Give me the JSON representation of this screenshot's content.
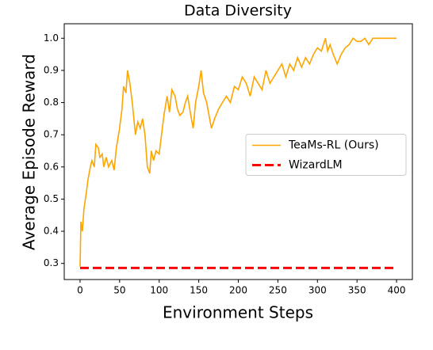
{
  "chart_data": {
    "type": "line",
    "title": "Data Diversity",
    "xlabel": "Environment Steps",
    "ylabel": "Average Episode Reward",
    "series": [
      {
        "name": "TeaMs-RL (Ours)",
        "color": "#ffa500",
        "x": [
          0,
          1,
          3,
          5,
          8,
          10,
          13,
          15,
          18,
          20,
          23,
          25,
          28,
          30,
          33,
          36,
          40,
          43,
          46,
          50,
          53,
          55,
          58,
          60,
          63,
          66,
          70,
          73,
          76,
          79,
          82,
          85,
          88,
          90,
          93,
          96,
          100,
          103,
          106,
          110,
          113,
          116,
          120,
          123,
          126,
          130,
          133,
          136,
          140,
          143,
          146,
          150,
          153,
          156,
          160,
          163,
          166,
          170,
          175,
          180,
          185,
          190,
          195,
          200,
          205,
          210,
          215,
          220,
          225,
          230,
          235,
          240,
          245,
          250,
          255,
          260,
          265,
          270,
          275,
          280,
          285,
          290,
          295,
          300,
          305,
          310,
          313,
          316,
          320,
          325,
          330,
          335,
          340,
          345,
          350,
          355,
          360,
          365,
          370,
          380,
          390,
          400
        ],
        "values": [
          0.29,
          0.43,
          0.4,
          0.47,
          0.52,
          0.56,
          0.6,
          0.62,
          0.6,
          0.67,
          0.66,
          0.63,
          0.64,
          0.6,
          0.63,
          0.6,
          0.62,
          0.59,
          0.66,
          0.72,
          0.78,
          0.85,
          0.83,
          0.9,
          0.86,
          0.8,
          0.7,
          0.74,
          0.72,
          0.75,
          0.7,
          0.6,
          0.58,
          0.65,
          0.62,
          0.65,
          0.64,
          0.7,
          0.76,
          0.82,
          0.77,
          0.84,
          0.82,
          0.78,
          0.76,
          0.77,
          0.8,
          0.82,
          0.76,
          0.72,
          0.8,
          0.85,
          0.9,
          0.83,
          0.8,
          0.76,
          0.72,
          0.75,
          0.78,
          0.8,
          0.82,
          0.8,
          0.85,
          0.84,
          0.88,
          0.86,
          0.82,
          0.88,
          0.86,
          0.84,
          0.9,
          0.86,
          0.88,
          0.9,
          0.92,
          0.88,
          0.92,
          0.9,
          0.94,
          0.91,
          0.94,
          0.92,
          0.95,
          0.97,
          0.96,
          1.0,
          0.96,
          0.98,
          0.95,
          0.92,
          0.95,
          0.97,
          0.98,
          1.0,
          0.99,
          0.99,
          1.0,
          0.98,
          1.0,
          1.0,
          1.0,
          1.0
        ]
      },
      {
        "name": "WizardLM",
        "color": "#ff0000",
        "dashed": true,
        "x": [
          0,
          400
        ],
        "values": [
          0.286,
          0.286
        ]
      }
    ],
    "xlim": [
      -20,
      420
    ],
    "xticks": [
      0,
      50,
      100,
      150,
      200,
      250,
      300,
      350,
      400
    ],
    "ylim": [
      0.25,
      1.045
    ],
    "yticks": [
      0.3,
      0.4,
      0.5,
      0.6,
      0.7,
      0.8,
      0.9,
      {
        "value": 1,
        "label": "1.0"
      }
    ],
    "legend": "center right",
    "grid": false
  }
}
